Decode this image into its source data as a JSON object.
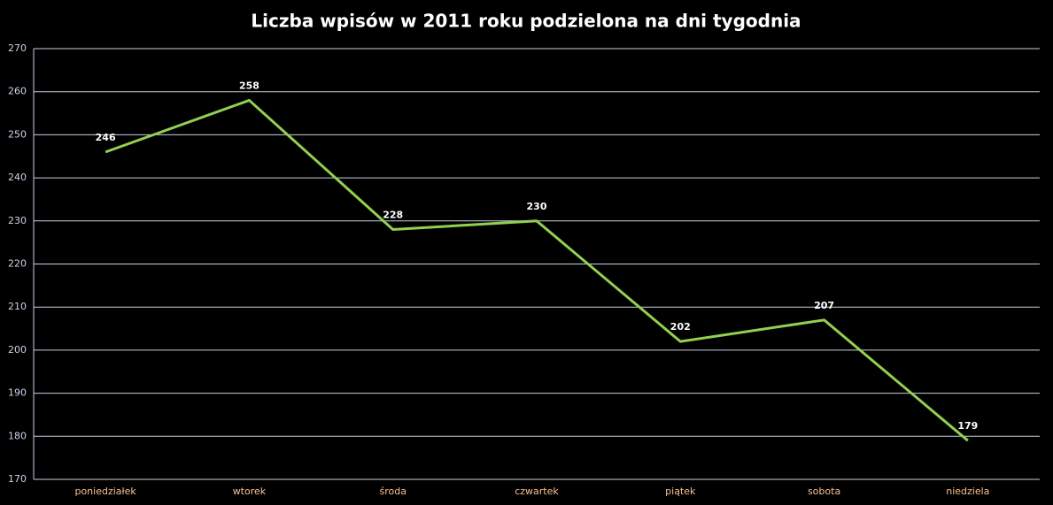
{
  "chart_data": {
    "type": "line",
    "title": "Liczba wpisów w 2011 roku podzielona na dni tygodnia",
    "categories": [
      "poniedziałek",
      "wtorek",
      "środa",
      "czwartek",
      "piątek",
      "sobota",
      "niedziela"
    ],
    "values": [
      246,
      258,
      228,
      230,
      202,
      207,
      179
    ],
    "color": "#92d050",
    "ylim": [
      170,
      270
    ],
    "yticks": [
      170,
      180,
      190,
      200,
      210,
      220,
      230,
      240,
      250,
      260,
      270
    ],
    "grid": true
  }
}
